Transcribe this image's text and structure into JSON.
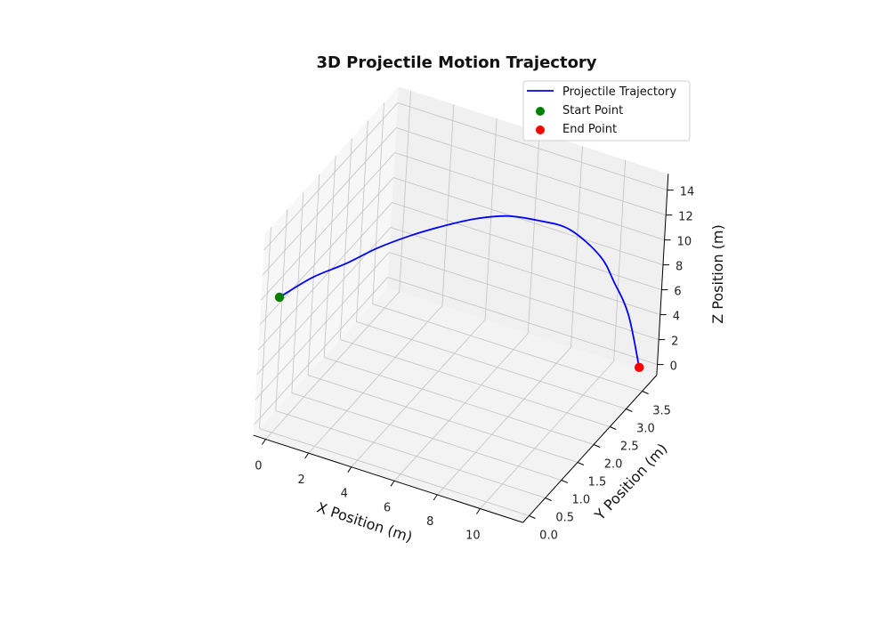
{
  "chart_data": {
    "type": "line3d",
    "title": "3D Projectile Motion Trajectory",
    "xlabel": "X Position (m)",
    "ylabel": "Y Position (m)",
    "zlabel": "Z Position (m)",
    "xlim": [
      -0.57,
      12.0
    ],
    "ylim": [
      -0.19,
      3.95
    ],
    "zlim": [
      -0.85,
      15.3
    ],
    "xticks": [
      "0",
      "2",
      "4",
      "6",
      "8",
      "10"
    ],
    "yticks": [
      "0.0",
      "0.5",
      "1.0",
      "1.5",
      "2.0",
      "2.5",
      "3.0",
      "3.5"
    ],
    "zticks": [
      "0",
      "2",
      "4",
      "6",
      "8",
      "10",
      "12",
      "14"
    ],
    "grid": true,
    "legend_position": "top-right",
    "series": [
      {
        "name": "Projectile Trajectory",
        "color": "#0000ff",
        "kind": "line",
        "x": [
          0,
          1,
          2,
          3,
          4,
          5,
          6,
          7,
          8,
          9,
          10,
          10.5,
          11,
          11.44
        ],
        "y": [
          0,
          0.33,
          0.66,
          0.99,
          1.32,
          1.64,
          1.97,
          2.3,
          2.63,
          2.96,
          3.29,
          3.45,
          3.62,
          3.76
        ],
        "z": [
          10,
          11.2,
          11.9,
          12.8,
          13.4,
          13.8,
          14.0,
          13.85,
          13.1,
          12.0,
          9.5,
          7.2,
          4.4,
          0
        ]
      },
      {
        "name": "Start Point",
        "color": "#008000",
        "kind": "scatter",
        "x": [
          0
        ],
        "y": [
          0
        ],
        "z": [
          10
        ]
      },
      {
        "name": "End Point",
        "color": "#ff0000",
        "kind": "scatter",
        "x": [
          11.44
        ],
        "y": [
          3.76
        ],
        "z": [
          0
        ]
      }
    ]
  }
}
